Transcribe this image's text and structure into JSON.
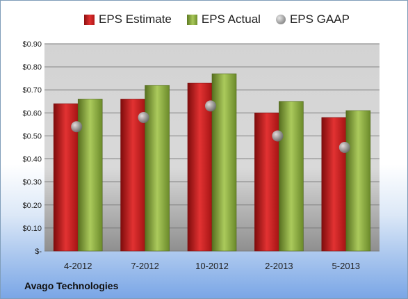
{
  "company": "Avago Technologies",
  "chart_data": {
    "type": "bar",
    "categories": [
      "4-2012",
      "7-2012",
      "10-2012",
      "2-2013",
      "5-2013"
    ],
    "series": [
      {
        "name": "EPS Estimate",
        "type": "bar",
        "color": "#c81e1e",
        "values": [
          0.64,
          0.66,
          0.73,
          0.6,
          0.58
        ]
      },
      {
        "name": "EPS Actual",
        "type": "bar",
        "color": "#8fb240",
        "values": [
          0.66,
          0.72,
          0.77,
          0.65,
          0.61
        ]
      },
      {
        "name": "EPS GAAP",
        "type": "marker",
        "color": "#9a9a9a",
        "values": [
          0.54,
          0.58,
          0.63,
          0.5,
          0.45
        ]
      }
    ],
    "yticks": [
      "$-",
      "$0.10",
      "$0.20",
      "$0.30",
      "$0.40",
      "$0.50",
      "$0.60",
      "$0.70",
      "$0.80",
      "$0.90"
    ],
    "ylim": [
      0,
      0.9
    ],
    "grid": true,
    "legend": "top"
  }
}
